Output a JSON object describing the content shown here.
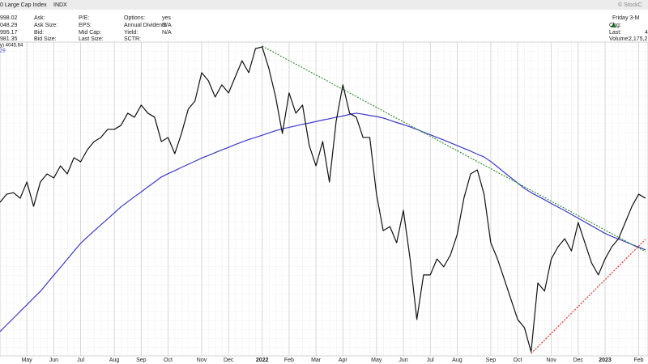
{
  "header": {
    "title": "0 Large Cap Index",
    "symbol": "INDX",
    "credit": "© StockC",
    "quote_values": [
      "998.02",
      "048.29",
      "995.17",
      "981.35"
    ],
    "labels_1": [
      "Ask:",
      "Ask Size:",
      "Bid:",
      "Bid Size:"
    ],
    "labels_2": [
      "P/E:",
      "EPS:",
      "Mid Cap:",
      "Last Size:"
    ],
    "labels_3": [
      "Options:",
      "Annual Dividend:",
      "Yield:",
      "SCTR:"
    ],
    "values_3": [
      "yes",
      "N/A",
      "N/A"
    ],
    "date": "Friday  3-M",
    "chg_label": "Chg:",
    "last_label": "Last:",
    "last_value": "4",
    "volume_label": "Volume:",
    "volume_value": "2,175,2"
  },
  "chart_data": {
    "type": "line",
    "categories": [
      null,
      null,
      null,
      null,
      "May",
      null,
      null,
      null,
      "Jun",
      null,
      null,
      null,
      "Jul",
      null,
      null,
      null,
      null,
      "Aug",
      null,
      null,
      null,
      "Sep",
      null,
      null,
      null,
      "Oct",
      null,
      null,
      null,
      null,
      "Nov",
      null,
      null,
      null,
      "Dec",
      null,
      null,
      null,
      null,
      "2022",
      null,
      null,
      null,
      "Feb",
      null,
      null,
      null,
      "Mar",
      null,
      null,
      null,
      "Apr",
      null,
      null,
      null,
      null,
      "May",
      null,
      null,
      null,
      "Jun",
      null,
      null,
      null,
      "Jul",
      null,
      null,
      null,
      "Aug",
      null,
      null,
      null,
      null,
      "Sep",
      null,
      null,
      null,
      "Oct",
      null,
      null,
      null,
      null,
      "Nov",
      null,
      null,
      null,
      "Dec",
      null,
      null,
      null,
      "2023",
      null,
      null,
      null,
      null,
      "Feb",
      null
    ],
    "ylim": [
      3566,
      4806
    ],
    "series": [
      {
        "name": "y) 4045.64",
        "color": "#111111",
        "style": "solid",
        "values": [
          4173,
          4205,
          4211,
          4189,
          4253,
          4157,
          4253,
          4285,
          4269,
          4317,
          4285,
          4349,
          4333,
          4381,
          4413,
          4429,
          4461,
          4461,
          4477,
          4525,
          4509,
          4557,
          4525,
          4509,
          4413,
          4429,
          4365,
          4445,
          4541,
          4573,
          4685,
          4653,
          4589,
          4637,
          4605,
          4669,
          4732,
          4685,
          4780,
          4787,
          4701,
          4589,
          4445,
          4605,
          4525,
          4557,
          4397,
          4317,
          4413,
          4253,
          4493,
          4637,
          4525,
          4509,
          4429,
          4429,
          4205,
          4061,
          4077,
          4013,
          4141,
          3949,
          3710,
          3886,
          3886,
          3949,
          3918,
          3965,
          4045,
          4189,
          4285,
          4301,
          4205,
          4013,
          3949,
          3870,
          3790,
          3710,
          3678,
          3582,
          3854,
          3822,
          3949,
          3997,
          4029,
          3981,
          4093,
          4013,
          3933,
          3886,
          3949,
          3997,
          4029,
          4093,
          4157,
          4205,
          4189
        ]
      },
      {
        "name": "29",
        "color": "#3a3acc",
        "style": "solid",
        "values": [
          3662,
          3689,
          3715,
          3742,
          3768,
          3795,
          3821,
          3853,
          3885,
          3916,
          3948,
          3980,
          4011,
          4036,
          4060,
          4084,
          4107,
          4131,
          4155,
          4175,
          4195,
          4214,
          4234,
          4253,
          4273,
          4286,
          4298,
          4311,
          4323,
          4335,
          4348,
          4358,
          4369,
          4380,
          4390,
          4401,
          4411,
          4421,
          4429,
          4438,
          4447,
          4456,
          4463,
          4469,
          4475,
          4481,
          4486,
          4492,
          4498,
          4503,
          4509,
          4514,
          4520,
          4525,
          4521,
          4516,
          4512,
          4506,
          4497,
          4488,
          4480,
          4471,
          4461,
          4450,
          4440,
          4429,
          4419,
          4408,
          4397,
          4386,
          4375,
          4363,
          4352,
          4334,
          4313,
          4291,
          4270,
          4249,
          4228,
          4211,
          4197,
          4183,
          4168,
          4154,
          4140,
          4125,
          4110,
          4095,
          4080,
          4065,
          4050,
          4038,
          4028,
          4017,
          4006,
          3996,
          3985
        ]
      },
      {
        "color": "#2a8a2a",
        "style": "dotted",
        "values": [
          null,
          null,
          null,
          null,
          null,
          null,
          null,
          null,
          null,
          null,
          null,
          null,
          null,
          null,
          null,
          null,
          null,
          null,
          null,
          null,
          null,
          null,
          null,
          null,
          null,
          null,
          null,
          null,
          null,
          null,
          null,
          null,
          null,
          null,
          null,
          null,
          null,
          null,
          null,
          4790,
          4776,
          4762,
          4747,
          4733,
          4719,
          4705,
          4690,
          4676,
          4662,
          4648,
          4633,
          4619,
          4605,
          4591,
          4576,
          4562,
          4548,
          4534,
          4519,
          4505,
          4491,
          4477,
          4462,
          4448,
          4434,
          4420,
          4405,
          4391,
          4377,
          4363,
          4348,
          4334,
          4320,
          4306,
          4291,
          4277,
          4263,
          4249,
          4234,
          4220,
          4206,
          4192,
          4177,
          4163,
          4149,
          4135,
          4120,
          4106,
          4092,
          4078,
          4063,
          4049,
          4035,
          4021,
          4006,
          3992,
          3978
        ]
      },
      {
        "color": "#e02020",
        "style": "dotted",
        "values": [
          null,
          null,
          null,
          null,
          null,
          null,
          null,
          null,
          null,
          null,
          null,
          null,
          null,
          null,
          null,
          null,
          null,
          null,
          null,
          null,
          null,
          null,
          null,
          null,
          null,
          null,
          null,
          null,
          null,
          null,
          null,
          null,
          null,
          null,
          null,
          null,
          null,
          null,
          null,
          null,
          null,
          null,
          null,
          null,
          null,
          null,
          null,
          null,
          null,
          null,
          null,
          null,
          null,
          null,
          null,
          null,
          null,
          null,
          null,
          null,
          null,
          null,
          null,
          null,
          null,
          null,
          null,
          null,
          null,
          null,
          null,
          null,
          null,
          null,
          null,
          null,
          null,
          null,
          null,
          3576,
          3602,
          3629,
          3655,
          3682,
          3708,
          3735,
          3761,
          3788,
          3814,
          3841,
          3867,
          3894,
          3920,
          3947,
          3973,
          4000,
          4026
        ]
      }
    ]
  }
}
